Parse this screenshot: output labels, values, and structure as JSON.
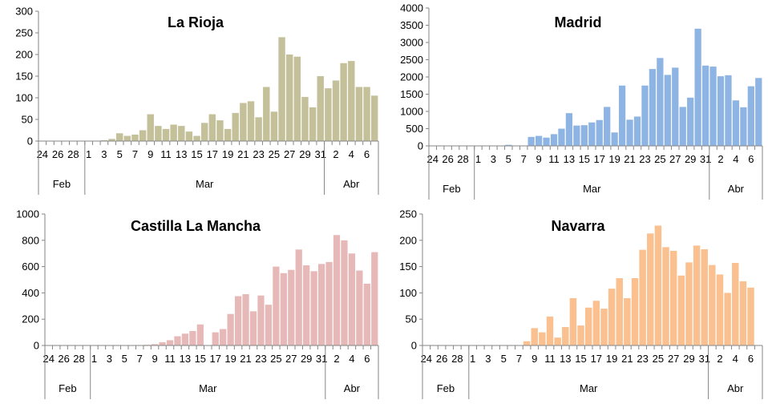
{
  "chart_data": [
    {
      "type": "bar",
      "title": "La Rioja",
      "color": "#c4c19a",
      "ylim": [
        0,
        300
      ],
      "yticks": [
        "0",
        "50",
        "100",
        "150",
        "200",
        "250",
        "300"
      ],
      "categories": [
        "24",
        "25",
        "26",
        "27",
        "28",
        "29",
        "1",
        "2",
        "3",
        "4",
        "5",
        "6",
        "7",
        "8",
        "9",
        "10",
        "11",
        "12",
        "13",
        "14",
        "15",
        "16",
        "17",
        "18",
        "19",
        "20",
        "21",
        "22",
        "23",
        "24",
        "25",
        "26",
        "27",
        "28",
        "29",
        "30",
        "31",
        "1",
        "2",
        "3",
        "4",
        "5",
        "6",
        "7"
      ],
      "xtick_labels": [
        "24",
        "26",
        "28",
        "1",
        "3",
        "5",
        "7",
        "9",
        "11",
        "13",
        "15",
        "17",
        "19",
        "21",
        "23",
        "25",
        "27",
        "29",
        "31",
        "2",
        "4",
        "6"
      ],
      "months": [
        "Feb",
        "Mar",
        "Abr"
      ],
      "values": [
        0,
        0,
        0,
        0,
        0,
        0,
        0,
        0,
        2,
        5,
        18,
        12,
        15,
        25,
        62,
        35,
        28,
        38,
        35,
        22,
        12,
        42,
        62,
        48,
        28,
        65,
        88,
        92,
        55,
        125,
        68,
        240,
        200,
        195,
        102,
        78,
        150,
        122,
        140,
        180,
        185,
        125,
        125,
        105
      ]
    },
    {
      "type": "bar",
      "title": "Madrid",
      "color": "#8db4e2",
      "ylim": [
        0,
        4000
      ],
      "yticks": [
        "0",
        "500",
        "1000",
        "1500",
        "2000",
        "2500",
        "3000",
        "3500",
        "4000"
      ],
      "categories": [
        "24",
        "25",
        "26",
        "27",
        "28",
        "29",
        "1",
        "2",
        "3",
        "4",
        "5",
        "6",
        "7",
        "8",
        "9",
        "10",
        "11",
        "12",
        "13",
        "14",
        "15",
        "16",
        "17",
        "18",
        "19",
        "20",
        "21",
        "22",
        "23",
        "24",
        "25",
        "26",
        "27",
        "28",
        "29",
        "30",
        "31",
        "1",
        "2",
        "3",
        "4",
        "5",
        "6",
        "7"
      ],
      "xtick_labels": [
        "24",
        "26",
        "28",
        "1",
        "3",
        "5",
        "7",
        "9",
        "11",
        "13",
        "15",
        "17",
        "19",
        "21",
        "23",
        "25",
        "27",
        "29",
        "31",
        "2",
        "4",
        "6"
      ],
      "months": [
        "Feb",
        "Mar",
        "Abr"
      ],
      "values": [
        0,
        0,
        0,
        0,
        0,
        0,
        0,
        0,
        0,
        0,
        30,
        0,
        0,
        260,
        290,
        240,
        340,
        500,
        950,
        590,
        600,
        680,
        750,
        1130,
        390,
        1750,
        760,
        850,
        1750,
        2230,
        2550,
        2060,
        2270,
        1130,
        1400,
        3400,
        2330,
        2300,
        2020,
        2050,
        1320,
        1120,
        1730,
        1970
      ]
    },
    {
      "type": "bar",
      "title": "Castilla La Mancha",
      "color": "#e6b9b8",
      "ylim": [
        0,
        1000
      ],
      "yticks": [
        "0",
        "200",
        "400",
        "600",
        "800",
        "1000"
      ],
      "categories": [
        "24",
        "25",
        "26",
        "27",
        "28",
        "29",
        "1",
        "2",
        "3",
        "4",
        "5",
        "6",
        "7",
        "8",
        "9",
        "10",
        "11",
        "12",
        "13",
        "14",
        "15",
        "16",
        "17",
        "18",
        "19",
        "20",
        "21",
        "22",
        "23",
        "24",
        "25",
        "26",
        "27",
        "28",
        "29",
        "30",
        "31",
        "1",
        "2",
        "3",
        "4",
        "5",
        "6",
        "7"
      ],
      "xtick_labels": [
        "24",
        "26",
        "28",
        "1",
        "3",
        "5",
        "7",
        "9",
        "11",
        "13",
        "15",
        "17",
        "19",
        "21",
        "23",
        "25",
        "27",
        "29",
        "31",
        "2",
        "4",
        "6"
      ],
      "months": [
        "Feb",
        "Mar",
        "Abr"
      ],
      "values": [
        0,
        0,
        0,
        0,
        0,
        0,
        0,
        0,
        0,
        0,
        0,
        0,
        0,
        5,
        10,
        25,
        40,
        70,
        90,
        110,
        160,
        0,
        100,
        125,
        240,
        375,
        390,
        260,
        380,
        310,
        600,
        550,
        575,
        730,
        610,
        565,
        620,
        635,
        840,
        800,
        700,
        570,
        470,
        710
      ]
    },
    {
      "type": "bar",
      "title": "Navarra",
      "color": "#fac090",
      "ylim": [
        0,
        250
      ],
      "yticks": [
        "0",
        "50",
        "100",
        "150",
        "200",
        "250"
      ],
      "categories": [
        "24",
        "25",
        "26",
        "27",
        "28",
        "29",
        "1",
        "2",
        "3",
        "4",
        "5",
        "6",
        "7",
        "8",
        "9",
        "10",
        "11",
        "12",
        "13",
        "14",
        "15",
        "16",
        "17",
        "18",
        "19",
        "20",
        "21",
        "22",
        "23",
        "24",
        "25",
        "26",
        "27",
        "28",
        "29",
        "30",
        "31",
        "1",
        "2",
        "3",
        "4",
        "5",
        "6",
        "7"
      ],
      "xtick_labels": [
        "24",
        "26",
        "28",
        "1",
        "3",
        "5",
        "7",
        "9",
        "11",
        "13",
        "15",
        "17",
        "19",
        "21",
        "23",
        "25",
        "27",
        "29",
        "31",
        "2",
        "4",
        "6"
      ],
      "months": [
        "Feb",
        "Mar",
        "Abr"
      ],
      "values": [
        0,
        0,
        0,
        0,
        0,
        0,
        0,
        0,
        0,
        0,
        0,
        0,
        0,
        8,
        33,
        25,
        55,
        15,
        35,
        90,
        38,
        72,
        85,
        70,
        108,
        128,
        90,
        128,
        182,
        213,
        228,
        187,
        180,
        133,
        158,
        190,
        183,
        153,
        135,
        100,
        157,
        122,
        110,
        0
      ]
    }
  ]
}
